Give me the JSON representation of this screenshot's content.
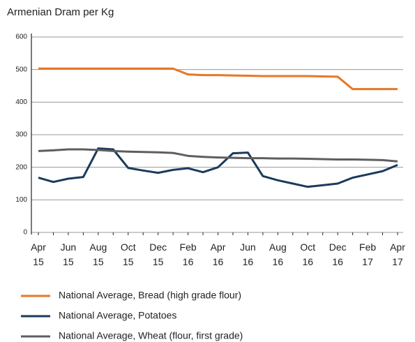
{
  "chart_data": {
    "type": "line",
    "y_axis_title": "Armenian Dram per Kg",
    "categories": [
      "Apr 15",
      null,
      "Jun 15",
      null,
      "Aug 15",
      null,
      "Oct 15",
      null,
      "Dec 15",
      null,
      "Feb 16",
      null,
      "Apr 16",
      null,
      "Jun 16",
      null,
      "Aug 16",
      null,
      "Oct 16",
      null,
      "Dec 16",
      null,
      "Feb 17",
      null,
      "Apr 17"
    ],
    "series": [
      {
        "name": "National Average, Bread (high grade flour)",
        "color": "#e87722",
        "values": [
          503,
          503,
          503,
          503,
          503,
          503,
          503,
          503,
          503,
          503,
          485,
          483,
          483,
          482,
          481,
          480,
          480,
          480,
          480,
          479,
          478,
          440,
          440,
          440,
          440
        ]
      },
      {
        "name": "National Average, Potatoes",
        "color": "#1b3a5c",
        "values": [
          168,
          155,
          165,
          170,
          258,
          255,
          198,
          190,
          183,
          192,
          197,
          185,
          200,
          243,
          245,
          173,
          160,
          150,
          140,
          145,
          150,
          168,
          178,
          188,
          207
        ]
      },
      {
        "name": "National Average, Wheat (flour, first grade)",
        "color": "#5e5e5e",
        "values": [
          250,
          252,
          255,
          255,
          253,
          250,
          248,
          247,
          246,
          244,
          235,
          232,
          230,
          229,
          228,
          228,
          227,
          227,
          226,
          225,
          224,
          224,
          223,
          222,
          218
        ]
      }
    ],
    "ylim": [
      0,
      600
    ],
    "yticks": [
      0,
      100,
      200,
      300,
      400,
      500,
      600
    ],
    "grid": true
  }
}
